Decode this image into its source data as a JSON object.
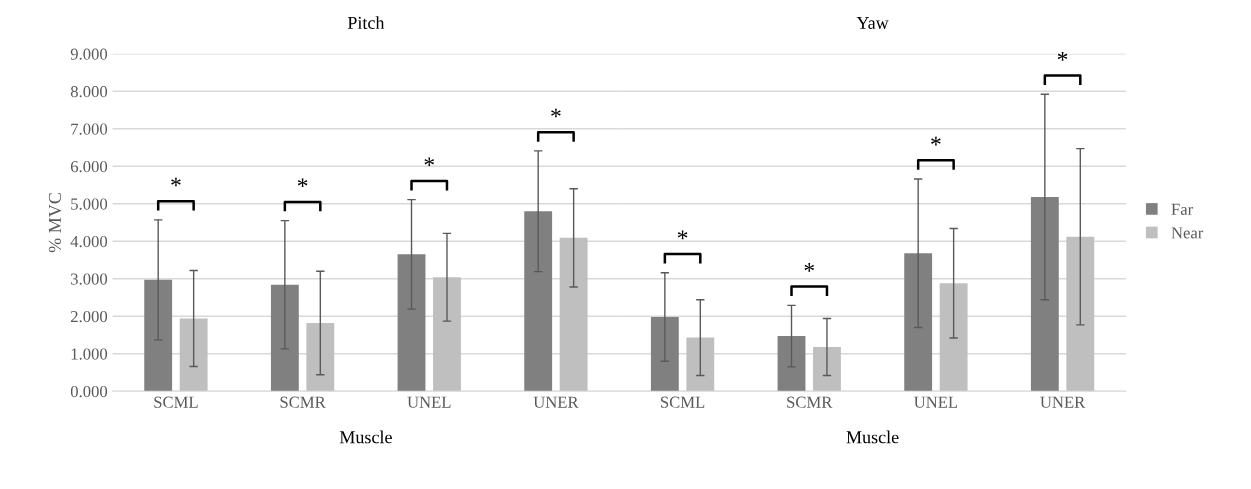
{
  "chart_data": [
    {
      "type": "bar",
      "title": "Pitch",
      "xlabel": "Muscle",
      "ylabel": "% MVC",
      "categories": [
        "SCML",
        "SCMR",
        "UNEL",
        "UNER"
      ],
      "series": [
        {
          "color": "#808080",
          "values": [
            2.97,
            2.84,
            3.65,
            4.8
          ],
          "errors": [
            1.6,
            1.71,
            1.46,
            1.61
          ]
        },
        {
          "color": "#bfbfbf",
          "values": [
            1.94,
            1.82,
            3.04,
            4.09
          ],
          "errors": [
            1.28,
            1.38,
            1.17,
            1.31
          ]
        }
      ],
      "ylim": [
        0,
        9
      ],
      "yticks": [
        {
          "value": 0,
          "label": "0.000"
        },
        {
          "value": 1,
          "label": "1.000"
        },
        {
          "value": 2,
          "label": "2.000"
        },
        {
          "value": 3,
          "label": "3.000"
        },
        {
          "value": 4,
          "label": "4.000"
        },
        {
          "value": 5,
          "label": "5.000"
        },
        {
          "value": 6,
          "label": "6.000"
        },
        {
          "value": 7,
          "label": "7.000"
        },
        {
          "value": 8,
          "label": "8.000"
        },
        {
          "value": 9,
          "label": "9.000"
        }
      ],
      "grid": "y",
      "annotations": [
        "*",
        "*",
        "*",
        "*"
      ]
    },
    {
      "type": "bar",
      "title": "Yaw",
      "xlabel": "Muscle",
      "categories": [
        "SCML",
        "SCMR",
        "UNEL",
        "UNER"
      ],
      "series": [
        {
          "name": "Far",
          "color": "#808080",
          "values": [
            1.98,
            1.47,
            3.68,
            5.18
          ],
          "errors": [
            1.18,
            0.82,
            1.98,
            2.74
          ]
        },
        {
          "name": "Near",
          "color": "#bfbfbf",
          "values": [
            1.43,
            1.18,
            2.88,
            4.12
          ],
          "errors": [
            1.01,
            0.76,
            1.46,
            2.35
          ]
        }
      ],
      "ylim": [
        0,
        9
      ],
      "yticks": [
        0,
        1,
        2,
        3,
        4,
        5,
        6,
        7,
        8,
        9
      ],
      "tick_labels": "x",
      "grid": "y",
      "legend": "right",
      "annotations": [
        "*",
        "*",
        "*",
        "*"
      ]
    }
  ]
}
